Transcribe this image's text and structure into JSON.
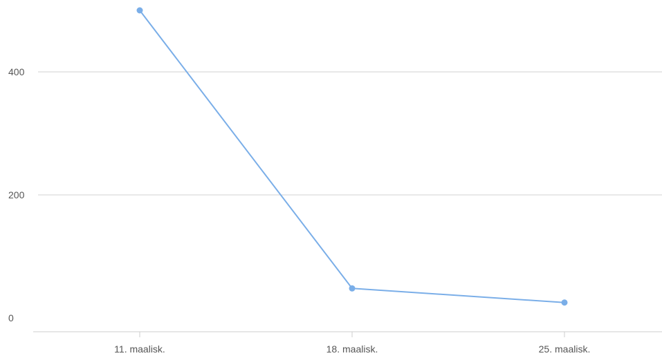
{
  "chart_data": {
    "type": "line",
    "title": "",
    "xlabel": "",
    "ylabel": "",
    "categories": [
      "11. maalisk.",
      "18. maalisk.",
      "25. maalisk."
    ],
    "series": [
      {
        "values": [
          500,
          48,
          25
        ],
        "color": "#7aaee8"
      }
    ],
    "ylim": [
      0,
      500
    ],
    "yticks": [
      0,
      200,
      400
    ],
    "grid": true,
    "legend": "none"
  }
}
